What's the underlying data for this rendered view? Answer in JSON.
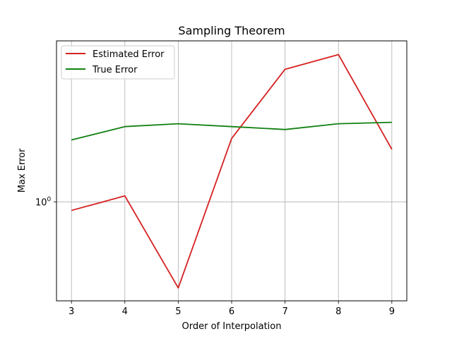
{
  "chart_data": {
    "type": "line",
    "title": "Sampling Theorem",
    "xlabel": "Order of Interpolation",
    "ylabel": "Max Error",
    "x": [
      3,
      4,
      5,
      6,
      7,
      8,
      9
    ],
    "xlim": [
      2.72,
      9.28
    ],
    "ylim": [
      0.62,
      2.18
    ],
    "yscale": "log",
    "xticks": [
      "3",
      "4",
      "5",
      "6",
      "7",
      "8",
      "9"
    ],
    "yticks": [
      {
        "value": 1.0,
        "base": "10",
        "exp": "0"
      }
    ],
    "grid": true,
    "legend_position": "top-left",
    "series": [
      {
        "name": "Estimated Error",
        "color": "#d62020",
        "values": [
          0.96,
          1.03,
          0.66,
          1.36,
          1.9,
          2.04,
          1.29
        ]
      },
      {
        "name": "True Error",
        "color": "#118011",
        "values": [
          1.35,
          1.44,
          1.46,
          1.44,
          1.42,
          1.46,
          1.47
        ]
      }
    ]
  }
}
